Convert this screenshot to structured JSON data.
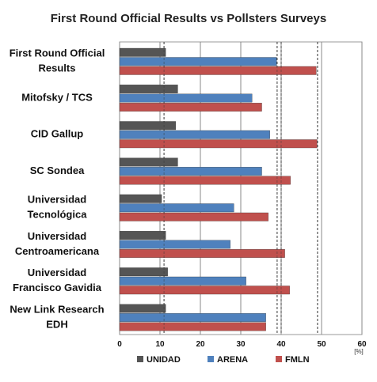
{
  "chart_data": {
    "type": "bar",
    "orientation": "horizontal",
    "title": "First Round Official Results vs Pollsters Surveys",
    "categories": [
      [
        "First Round Official",
        "Results"
      ],
      [
        "Mitofsky / TCS"
      ],
      [
        "CID Gallup"
      ],
      [
        "SC Sondea"
      ],
      [
        "Universidad",
        "Tecnológica"
      ],
      [
        "Universidad",
        "Centroamericana"
      ],
      [
        "Universidad",
        "Francisco Gavidia"
      ],
      [
        "New Link Research",
        "EDH"
      ]
    ],
    "series": [
      {
        "name": "UNIDAD",
        "color": "#555555",
        "values": [
          11.4,
          14.4,
          13.9,
          14.4,
          10.4,
          11.4,
          11.9,
          11.4
        ]
      },
      {
        "name": "ARENA",
        "color": "#4f81bd",
        "values": [
          38.9,
          32.8,
          37.2,
          35.2,
          28.3,
          27.4,
          31.3,
          36.2
        ]
      },
      {
        "name": "FMLN",
        "color": "#c0504d",
        "values": [
          48.7,
          35.2,
          48.9,
          42.3,
          36.8,
          40.9,
          42.1,
          36.2
        ]
      }
    ],
    "xlabel": "[%]",
    "xlim": [
      0,
      60
    ],
    "xticks": [
      "0",
      "10",
      "20",
      "30",
      "40",
      "50",
      "60"
    ],
    "reference_lines": [
      11,
      39,
      40,
      49
    ],
    "legend": "bottom"
  }
}
